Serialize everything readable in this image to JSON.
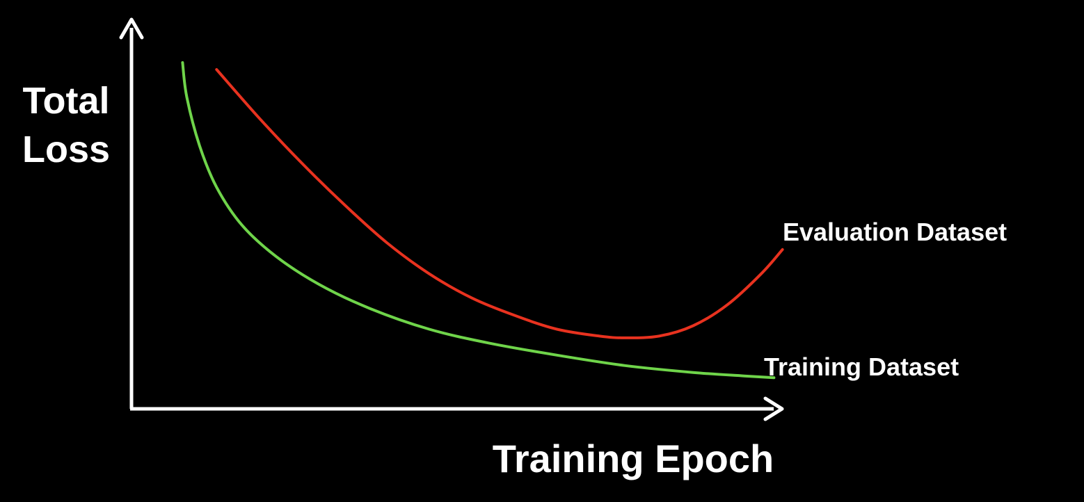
{
  "chart_data": {
    "type": "line",
    "title": "",
    "xlabel": "Training Epoch",
    "ylabel": [
      "Total",
      "Loss"
    ],
    "grid": false,
    "axis_ticks": false,
    "background": "#000000",
    "axis_color": "#ffffff",
    "series": [
      {
        "name": "Evaluation Dataset",
        "color": "#e8321f",
        "points": [
          [
            0.1,
            0.98
          ],
          [
            0.15,
            0.84
          ],
          [
            0.2,
            0.71
          ],
          [
            0.25,
            0.59
          ],
          [
            0.3,
            0.48
          ],
          [
            0.35,
            0.39
          ],
          [
            0.4,
            0.32
          ],
          [
            0.45,
            0.27
          ],
          [
            0.5,
            0.23
          ],
          [
            0.55,
            0.21
          ],
          [
            0.58,
            0.205
          ],
          [
            0.62,
            0.21
          ],
          [
            0.66,
            0.24
          ],
          [
            0.7,
            0.3
          ],
          [
            0.74,
            0.39
          ],
          [
            0.765,
            0.46
          ]
        ]
      },
      {
        "name": "Training Dataset",
        "color": "#6fd44a",
        "points": [
          [
            0.06,
            1.0
          ],
          [
            0.065,
            0.9
          ],
          [
            0.08,
            0.76
          ],
          [
            0.1,
            0.64
          ],
          [
            0.13,
            0.53
          ],
          [
            0.17,
            0.44
          ],
          [
            0.22,
            0.36
          ],
          [
            0.28,
            0.29
          ],
          [
            0.35,
            0.23
          ],
          [
            0.42,
            0.19
          ],
          [
            0.5,
            0.155
          ],
          [
            0.58,
            0.125
          ],
          [
            0.66,
            0.105
          ],
          [
            0.72,
            0.095
          ],
          [
            0.755,
            0.09
          ]
        ]
      }
    ]
  }
}
